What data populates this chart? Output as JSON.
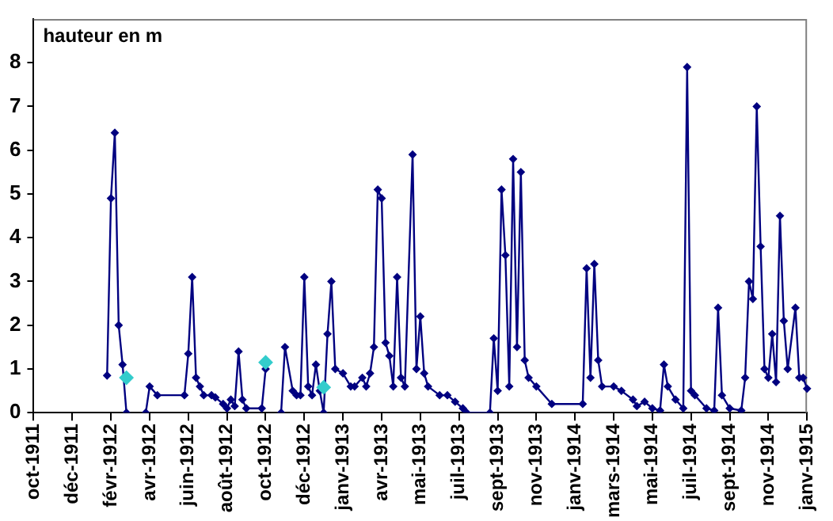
{
  "chart_data": {
    "type": "line",
    "ylabel": "hauteur en m",
    "ylim": [
      0,
      9
    ],
    "yticks": [
      0,
      1,
      2,
      3,
      4,
      5,
      6,
      7,
      8
    ],
    "categories": [
      "oct-1911",
      null,
      null,
      null,
      null,
      null,
      null,
      null,
      null,
      null,
      "déc-1911",
      null,
      null,
      null,
      null,
      null,
      null,
      null,
      null,
      null,
      "févr-1912",
      null,
      null,
      null,
      null,
      null,
      null,
      null,
      null,
      null,
      "avr-1912",
      null,
      null,
      null,
      null,
      null,
      null,
      null,
      null,
      null,
      "juin-1912",
      null,
      null,
      null,
      null,
      null,
      null,
      null,
      null,
      null,
      "août-1912",
      null,
      null,
      null,
      null,
      null,
      null,
      null,
      null,
      null,
      "oct-1912",
      null,
      null,
      null,
      null,
      null,
      null,
      null,
      null,
      null,
      "déc-1912",
      null,
      null,
      null,
      null,
      null,
      null,
      null,
      null,
      null,
      "janv-1913",
      null,
      null,
      null,
      null,
      null,
      null,
      null,
      null,
      null,
      "avr-1913",
      null,
      null,
      null,
      null,
      null,
      null,
      null,
      null,
      null,
      "mai-1913",
      null,
      null,
      null,
      null,
      null,
      null,
      null,
      null,
      null,
      "juil-1913",
      null,
      null,
      null,
      null,
      null,
      null,
      null,
      null,
      null,
      "sept-1913",
      null,
      null,
      null,
      null,
      null,
      null,
      null,
      null,
      null,
      "nov-1913",
      null,
      null,
      null,
      null,
      null,
      null,
      null,
      null,
      null,
      "janv-1914",
      null,
      null,
      null,
      null,
      null,
      null,
      null,
      null,
      null,
      "mars-1914",
      null,
      null,
      null,
      null,
      null,
      null,
      null,
      null,
      null,
      "mai-1914",
      null,
      null,
      null,
      null,
      null,
      null,
      null,
      null,
      null,
      "juil-1914",
      null,
      null,
      null,
      null,
      null,
      null,
      null,
      null,
      null,
      "sept-1914",
      null,
      null,
      null,
      null,
      null,
      null,
      null,
      null,
      null,
      "nov-1914",
      null,
      null,
      null,
      null,
      null,
      null,
      null,
      null,
      null,
      "janv-1915"
    ],
    "grid": false,
    "legend": false,
    "marker": "diamond",
    "line_style": "solid",
    "series": [
      {
        "color": "#000080",
        "values": [
          null,
          null,
          null,
          null,
          null,
          null,
          null,
          null,
          null,
          null,
          null,
          null,
          null,
          null,
          null,
          null,
          null,
          null,
          null,
          0.85,
          4.9,
          6.4,
          2.0,
          1.1,
          0,
          null,
          null,
          null,
          null,
          null,
          null,
          null,
          null,
          null,
          null,
          null,
          null,
          null,
          null,
          null,
          null,
          null,
          null,
          null,
          null,
          null,
          null,
          null,
          null,
          null,
          null,
          null,
          null,
          null,
          null,
          null,
          null,
          null,
          null,
          null,
          null,
          null,
          null,
          null,
          null,
          null,
          null,
          null,
          null,
          null,
          null,
          null,
          null,
          null,
          null,
          null,
          null,
          null,
          null,
          null,
          null,
          null,
          null,
          null,
          null,
          null,
          null,
          null,
          null,
          null,
          null,
          null,
          null,
          null,
          null,
          null,
          null,
          null,
          null,
          null,
          null,
          null,
          null,
          null,
          null,
          null,
          null,
          null,
          null,
          null,
          null,
          null,
          null,
          null,
          null,
          null,
          null,
          null,
          null,
          null,
          null,
          null,
          null,
          null,
          null,
          null,
          null,
          null,
          null,
          null,
          null,
          null,
          null,
          null,
          null,
          null,
          null,
          null,
          null,
          null,
          null,
          null,
          null,
          null,
          null,
          null,
          null,
          null,
          null,
          null,
          null,
          null,
          null,
          null,
          null,
          null,
          null,
          null,
          null,
          null,
          null,
          null,
          null,
          null,
          null,
          null,
          null,
          null,
          null,
          null,
          null,
          null,
          null,
          null,
          null,
          null,
          null,
          null,
          null,
          null,
          null,
          null,
          null,
          null,
          null,
          null,
          null,
          null,
          null,
          null,
          null,
          null,
          null,
          null,
          null,
          null,
          null,
          null,
          null,
          null,
          null
        ]
      },
      {
        "color": "#000080",
        "values": [
          null,
          null,
          null,
          null,
          null,
          null,
          null,
          null,
          null,
          null,
          null,
          null,
          null,
          null,
          null,
          null,
          null,
          null,
          null,
          null,
          null,
          null,
          null,
          null,
          null,
          null,
          null,
          null,
          null,
          0,
          0.6,
          null,
          0.4,
          null,
          null,
          null,
          null,
          null,
          null,
          0.4,
          1.35,
          3.1,
          0.8,
          0.6,
          0.4,
          null,
          0.4,
          0.35,
          null,
          0.2,
          0.1,
          0.3,
          0.15,
          1.4,
          0.3,
          0.1,
          null,
          null,
          null,
          0.1,
          1.0,
          null,
          null,
          null,
          null,
          null,
          null,
          null,
          null,
          null,
          null,
          null,
          null,
          null,
          null,
          null,
          null,
          null,
          null,
          null,
          null,
          null,
          null,
          null,
          null,
          null,
          null,
          null,
          null,
          null,
          null,
          null,
          null,
          null,
          null,
          null,
          null,
          null,
          null,
          null,
          null,
          null,
          null,
          null,
          null,
          null,
          null,
          null,
          null,
          null,
          null,
          null,
          null,
          null,
          null,
          null,
          null,
          null,
          null,
          null,
          null,
          null,
          null,
          null,
          null,
          null,
          null,
          null,
          null,
          null,
          null,
          null,
          null,
          null,
          null,
          null,
          null,
          null,
          null,
          null,
          null,
          null,
          null,
          null,
          null,
          null,
          null,
          null,
          null,
          null,
          null,
          null,
          null,
          null,
          null,
          null,
          null,
          null,
          null,
          null,
          null,
          null,
          null,
          null,
          null,
          null,
          null,
          null,
          null,
          null,
          null,
          null,
          null,
          null,
          null,
          null,
          null,
          null,
          null,
          null,
          null,
          null,
          null,
          null,
          null,
          null,
          null,
          null,
          null,
          null,
          null,
          null,
          null,
          null,
          null,
          null,
          null,
          null,
          null,
          null,
          null
        ]
      },
      {
        "color": "#000080",
        "values": [
          null,
          null,
          null,
          null,
          null,
          null,
          null,
          null,
          null,
          null,
          null,
          null,
          null,
          null,
          null,
          null,
          null,
          null,
          null,
          null,
          null,
          null,
          null,
          null,
          null,
          null,
          null,
          null,
          null,
          null,
          null,
          null,
          null,
          null,
          null,
          null,
          null,
          null,
          null,
          null,
          null,
          null,
          null,
          null,
          null,
          null,
          null,
          null,
          null,
          null,
          null,
          null,
          null,
          null,
          null,
          null,
          null,
          null,
          null,
          null,
          null,
          null,
          null,
          null,
          0,
          1.5,
          null,
          0.5,
          0.4,
          0.4,
          3.1,
          0.6,
          0.4,
          1.1,
          0.5,
          0,
          1.8,
          3.0,
          1.0,
          null,
          0.9,
          null,
          0.6,
          0.6,
          null,
          0.8,
          0.6,
          0.9,
          1.5,
          5.1,
          4.9,
          1.6,
          1.3,
          0.6,
          3.1,
          0.8,
          0.6,
          null,
          5.9,
          1.0,
          2.2,
          0.9,
          0.6,
          null,
          null,
          0.4,
          null,
          0.4,
          null,
          0.25,
          null,
          0.1,
          0,
          null,
          null,
          null,
          null,
          null,
          0,
          1.7,
          0.5,
          5.1,
          3.6,
          0.6,
          5.8,
          1.5,
          5.5,
          1.2,
          0.8,
          null,
          0.6,
          null,
          null,
          null,
          0.2,
          null,
          null,
          null,
          null,
          null,
          null,
          null,
          0.2,
          3.3,
          0.8,
          3.4,
          1.2,
          0.6,
          null,
          null,
          0.6,
          null,
          0.5,
          null,
          null,
          0.3,
          0.15,
          null,
          0.25,
          null,
          0.1,
          null,
          0.05,
          1.1,
          0.6,
          null,
          0.3,
          null,
          0.1,
          7.9,
          0.5,
          0.4,
          null,
          null,
          0.1,
          null,
          0.05,
          2.4,
          0.4,
          null,
          0.1,
          null,
          null,
          0.05,
          0.8,
          3.0,
          2.6,
          7.0,
          3.8,
          1.0,
          0.8,
          1.8,
          0.7,
          4.5,
          2.1,
          1.0,
          null,
          2.4,
          0.8,
          0.8,
          0.55
        ]
      },
      {
        "type": "scatter",
        "color": "#33cccc",
        "values": [
          null,
          null,
          null,
          null,
          null,
          null,
          null,
          null,
          null,
          null,
          null,
          null,
          null,
          null,
          null,
          null,
          null,
          null,
          null,
          null,
          null,
          null,
          null,
          null,
          0.8,
          null,
          null,
          null,
          null,
          null,
          null,
          null,
          null,
          null,
          null,
          null,
          null,
          null,
          null,
          null,
          null,
          null,
          null,
          null,
          null,
          null,
          null,
          null,
          null,
          null,
          null,
          null,
          null,
          null,
          null,
          null,
          null,
          null,
          null,
          null,
          1.15,
          null,
          null,
          null,
          null,
          null,
          null,
          null,
          null,
          null,
          null,
          null,
          null,
          null,
          null,
          0.58,
          null,
          null,
          null,
          null,
          null,
          null,
          null,
          null,
          null,
          null,
          null,
          null,
          null,
          null,
          null,
          null,
          null,
          null,
          null,
          null,
          null,
          null,
          null,
          null,
          null,
          null,
          null,
          null,
          null,
          null,
          null,
          null,
          null,
          null,
          null,
          null,
          null,
          null,
          null,
          null,
          null,
          null,
          null,
          null,
          null,
          null,
          null,
          null,
          null,
          null,
          null,
          null,
          null,
          null,
          null,
          null,
          null,
          null,
          null,
          null,
          null,
          null,
          null,
          null,
          null,
          null,
          null,
          null,
          null,
          null,
          null,
          null,
          null,
          null,
          null,
          null,
          null,
          null,
          null,
          null,
          null,
          null,
          null,
          null,
          null,
          null,
          null,
          null,
          null,
          null,
          null,
          null,
          null,
          null,
          null,
          null,
          null,
          null,
          null,
          null,
          null,
          null,
          null,
          null,
          null,
          null,
          null,
          null,
          null,
          null,
          null,
          null,
          null,
          null,
          null,
          null,
          null,
          null,
          null,
          null,
          null,
          null,
          null,
          null,
          null
        ]
      }
    ]
  }
}
